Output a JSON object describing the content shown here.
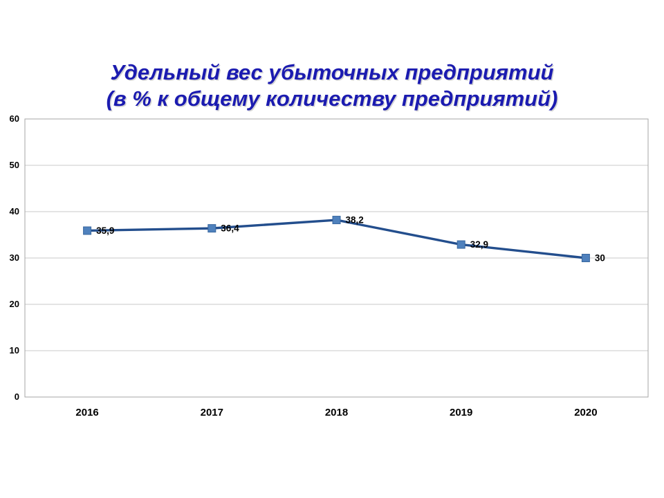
{
  "title": {
    "line1": "Удельный вес убыточных предприятий",
    "line2": "(в % к общему количеству предприятий)"
  },
  "chart_data": {
    "type": "line",
    "title": "Удельный вес убыточных предприятий (в % к общему количеству предприятий)",
    "categories": [
      "2016",
      "2017",
      "2018",
      "2019",
      "2020"
    ],
    "series": [
      {
        "name": "Удельный вес убыточных предприятий, %",
        "values": [
          35.9,
          36.4,
          38.2,
          32.9,
          30
        ]
      }
    ],
    "data_labels": [
      "35,9",
      "36,4",
      "38,2",
      "32,9",
      "30"
    ],
    "xlabel": "",
    "ylabel": "",
    "ylim": [
      0,
      60
    ],
    "yticks": [
      0,
      10,
      20,
      30,
      40,
      50,
      60
    ],
    "grid": true,
    "legend_position": "none",
    "marker_shape": "square",
    "colors": {
      "title": "#1b1bb0",
      "line": "#234e8d",
      "marker_fill": "#4f81bd",
      "marker_border": "#38679e",
      "grid": "#c8c8c8",
      "plot_border": "#a6a6a6",
      "tick_text": "#000000",
      "data_label_text": "#000000"
    }
  }
}
